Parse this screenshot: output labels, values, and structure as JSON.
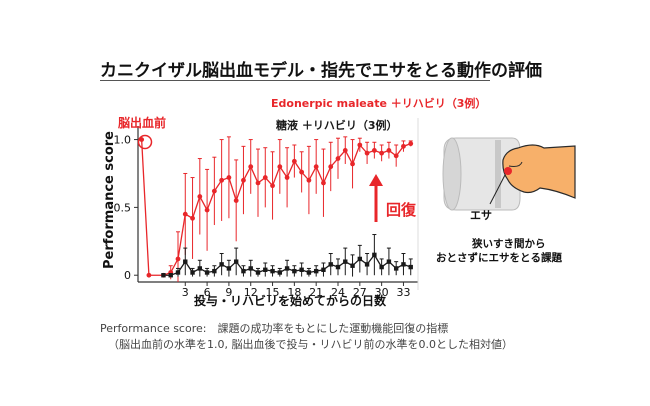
{
  "title": "カニクイザル脳出血モデル・指先でエサをとる動作の評価",
  "colors": {
    "red": "#e8262a",
    "black": "#1a1a1a"
  },
  "annotations": {
    "pre_hemorrhage": "脳出血前",
    "recovery": "回復",
    "bait": "エサ",
    "task_line1": "狭いすき間から",
    "task_line2": "おとさずにエサをとる課題"
  },
  "footnote": {
    "line1": "Performance score:　課題の成功率をもとにした運動機能回復の指標",
    "line2": "（脳出血前の水準を1.0, 脳出血後で投与・リハビリ前の水準を0.0とした相対値）"
  },
  "chart_data": {
    "type": "line",
    "ylabel": "Performance score",
    "xlabel": "投与・リハビリを始めてからの日数",
    "xlim": [
      -3.5,
      35
    ],
    "ylim": [
      -0.05,
      1.1
    ],
    "xticks": [
      "3",
      "6",
      "9",
      "12",
      "15",
      "18",
      "21",
      "24",
      "27",
      "30",
      "33"
    ],
    "xtick_values": [
      3,
      6,
      9,
      12,
      15,
      18,
      21,
      24,
      27,
      30,
      33
    ],
    "yticks": [
      "0",
      "0.5",
      "1.0"
    ],
    "ytick_values": [
      0,
      0.5,
      1.0
    ],
    "series": [
      {
        "name": "Edonerpic maleate ＋リハビリ（3例）",
        "color": "#e8262a",
        "x": [
          -3,
          -2,
          0,
          1,
          2,
          3,
          4,
          5,
          6,
          7,
          8,
          9,
          10,
          11,
          12,
          13,
          14,
          15,
          16,
          17,
          18,
          19,
          20,
          21,
          22,
          23,
          24,
          25,
          26,
          27,
          28,
          29,
          30,
          31,
          32,
          33,
          34
        ],
        "y": [
          1.0,
          0.0,
          0.0,
          0.02,
          0.12,
          0.45,
          0.42,
          0.58,
          0.48,
          0.62,
          0.7,
          0.72,
          0.55,
          0.7,
          0.8,
          0.68,
          0.72,
          0.66,
          0.8,
          0.72,
          0.84,
          0.76,
          0.7,
          0.8,
          0.68,
          0.8,
          0.86,
          0.92,
          0.82,
          0.96,
          0.9,
          0.92,
          0.9,
          0.92,
          0.88,
          0.95,
          0.97
        ],
        "err": [
          0,
          0,
          0,
          0.05,
          0.2,
          0.3,
          0.3,
          0.28,
          0.3,
          0.25,
          0.3,
          0.3,
          0.3,
          0.25,
          0.2,
          0.25,
          0.22,
          0.25,
          0.2,
          0.22,
          0.12,
          0.15,
          0.25,
          0.2,
          0.25,
          0.18,
          0.15,
          0.1,
          0.18,
          0.05,
          0.08,
          0.06,
          0.06,
          0.06,
          0.08,
          0.04,
          0.02
        ]
      },
      {
        "name": "糖液 ＋リハビリ（3例）",
        "color": "#1a1a1a",
        "x": [
          0,
          1,
          2,
          3,
          4,
          5,
          6,
          7,
          8,
          9,
          10,
          11,
          12,
          13,
          14,
          15,
          16,
          17,
          18,
          19,
          20,
          21,
          22,
          23,
          24,
          25,
          26,
          27,
          28,
          29,
          30,
          31,
          32,
          33,
          34
        ],
        "y": [
          0.0,
          0.0,
          0.02,
          0.1,
          0.02,
          0.05,
          0.02,
          0.03,
          0.08,
          0.05,
          0.1,
          0.03,
          0.05,
          0.02,
          0.04,
          0.03,
          0.02,
          0.05,
          0.03,
          0.04,
          0.02,
          0.03,
          0.04,
          0.08,
          0.06,
          0.1,
          0.07,
          0.12,
          0.08,
          0.15,
          0.06,
          0.1,
          0.05,
          0.08,
          0.06
        ],
        "err": [
          0,
          0,
          0.03,
          0.1,
          0.03,
          0.06,
          0.03,
          0.04,
          0.08,
          0.06,
          0.1,
          0.04,
          0.06,
          0.03,
          0.05,
          0.04,
          0.03,
          0.06,
          0.04,
          0.05,
          0.03,
          0.04,
          0.05,
          0.08,
          0.06,
          0.1,
          0.08,
          0.1,
          0.08,
          0.15,
          0.06,
          0.1,
          0.05,
          0.08,
          0.06
        ]
      }
    ],
    "legend_position": "top",
    "grid": false
  }
}
